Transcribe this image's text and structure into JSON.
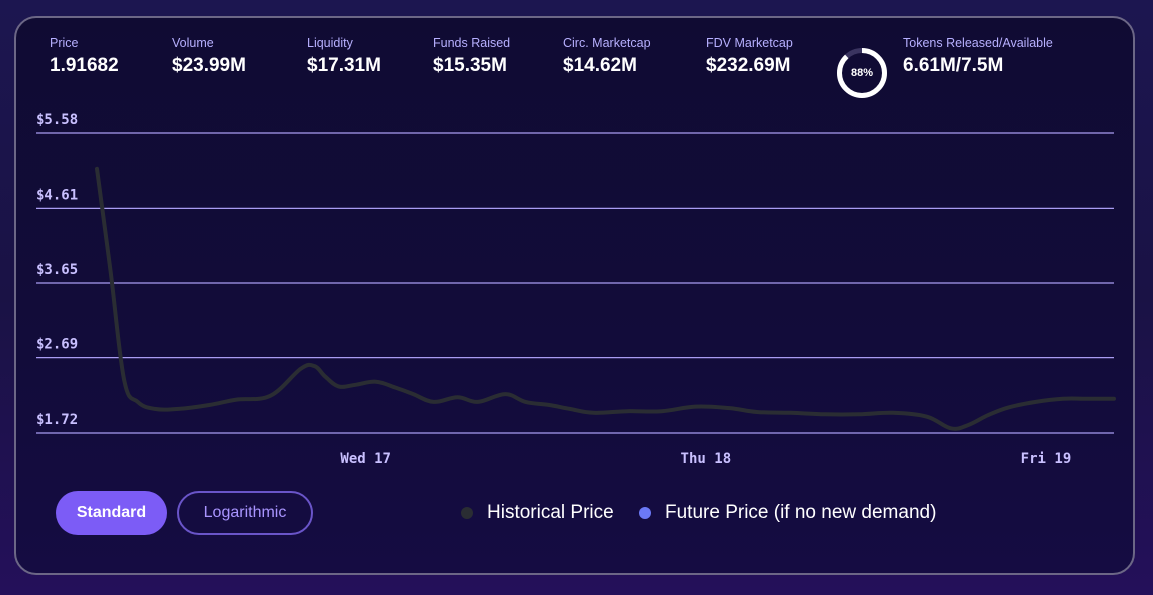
{
  "stats": [
    {
      "label": "Price",
      "value": "1.91682"
    },
    {
      "label": "Volume",
      "value": "$23.99M"
    },
    {
      "label": "Liquidity",
      "value": "$17.31M"
    },
    {
      "label": "Funds Raised",
      "value": "$15.35M"
    },
    {
      "label": "Circ. Marketcap",
      "value": "$14.62M"
    },
    {
      "label": "FDV Marketcap",
      "value": "$232.69M"
    }
  ],
  "tokens": {
    "percent_label": "88%",
    "percent": 88,
    "label": "Tokens Released/Available",
    "value": "6.61M/7.5M"
  },
  "buttons": {
    "standard": "Standard",
    "logarithmic": "Logarithmic"
  },
  "legend": {
    "historical": "Historical Price",
    "future": "Future Price (if no new demand)"
  },
  "colors": {
    "historical": "#2a2d33",
    "future": "#6b79f5",
    "accent": "#7c5cf6",
    "grid": "#a99cf2"
  },
  "chart_data": {
    "type": "line",
    "title": "",
    "xlabel": "",
    "ylabel": "",
    "ylim": [
      1.72,
      5.58
    ],
    "y_ticks": [
      "$5.58",
      "$4.61",
      "$3.65",
      "$2.69",
      "$1.72"
    ],
    "y_tick_values": [
      5.58,
      4.61,
      3.65,
      2.69,
      1.72
    ],
    "x_ticks": [
      {
        "label": "Wed 17",
        "x": 1.0
      },
      {
        "label": "Thu 18",
        "x": 2.0
      },
      {
        "label": "Fri 19",
        "x": 3.0
      }
    ],
    "xlim": [
      0.21,
      3.2
    ],
    "grid": true,
    "series": [
      {
        "name": "Historical Price",
        "x": [
          0.21,
          0.25,
          0.29,
          0.33,
          0.38,
          0.45,
          0.54,
          0.62,
          0.72,
          0.81,
          0.85,
          0.88,
          0.92,
          0.97,
          1.03,
          1.09,
          1.14,
          1.2,
          1.27,
          1.33,
          1.41,
          1.47,
          1.54,
          1.6,
          1.67,
          1.77,
          1.87,
          1.97,
          2.07,
          2.15,
          2.25,
          2.35,
          2.45,
          2.55,
          2.65,
          2.72,
          2.77,
          2.83,
          2.89,
          2.97,
          3.05,
          3.12,
          3.2
        ],
        "y": [
          5.12,
          3.8,
          2.4,
          2.12,
          2.03,
          2.03,
          2.08,
          2.15,
          2.2,
          2.55,
          2.58,
          2.45,
          2.32,
          2.34,
          2.38,
          2.3,
          2.22,
          2.12,
          2.18,
          2.12,
          2.22,
          2.12,
          2.08,
          2.03,
          1.98,
          2.0,
          2.0,
          2.06,
          2.04,
          1.99,
          1.98,
          1.96,
          1.96,
          1.98,
          1.93,
          1.78,
          1.82,
          1.95,
          2.05,
          2.12,
          2.16,
          2.16,
          2.16
        ]
      },
      {
        "name": "Future Price (if no new demand)",
        "x": [],
        "y": []
      }
    ]
  }
}
